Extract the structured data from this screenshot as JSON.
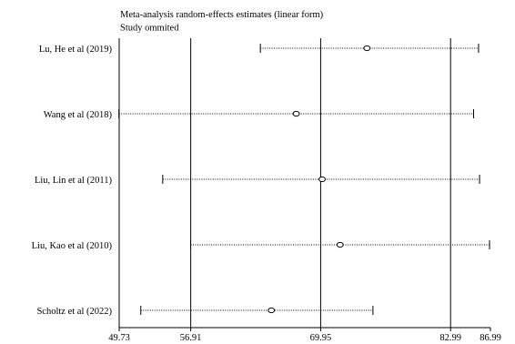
{
  "chart_data": {
    "type": "forest",
    "title": "Meta-analysis random-effects estimates (linear form)",
    "subtitle": "Study ommited",
    "x_ticks": [
      49.73,
      56.91,
      69.95,
      82.99,
      86.99
    ],
    "x_tick_labels": [
      "49.73",
      "56.91",
      "69.95",
      "82.99",
      "86.99"
    ],
    "xlim": [
      49.73,
      86.99
    ],
    "reference_lines": [
      56.91,
      69.95,
      82.99
    ],
    "grid": false,
    "studies": [
      {
        "label": "Lu, He et al (2019)",
        "estimate": 74.6,
        "ci_low": 63.9,
        "ci_high": 85.8
      },
      {
        "label": "Wang et al (2018)",
        "estimate": 67.5,
        "ci_low": 49.7,
        "ci_high": 85.3
      },
      {
        "label": "Liu, Lin et al (2011)",
        "estimate": 70.1,
        "ci_low": 54.1,
        "ci_high": 85.9
      },
      {
        "label": "Liu, Kao et al (2010)",
        "estimate": 71.9,
        "ci_low": 56.9,
        "ci_high": 86.9
      },
      {
        "label": "Scholtz et al (2022)",
        "estimate": 65.0,
        "ci_low": 51.9,
        "ci_high": 75.2
      }
    ]
  },
  "colors": {
    "line": "#000000",
    "background": "#ffffff"
  }
}
